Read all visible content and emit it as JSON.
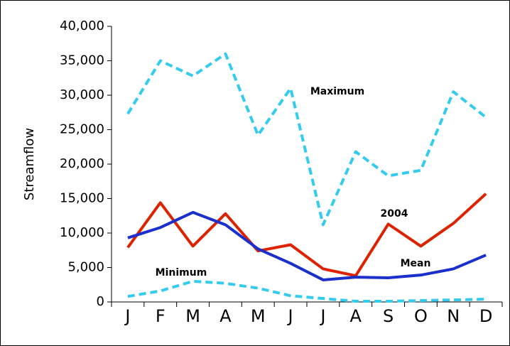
{
  "chart_data": {
    "type": "line",
    "y_label": "Streamflow",
    "categories": [
      "J",
      "F",
      "M",
      "A",
      "M",
      "J",
      "J",
      "A",
      "S",
      "O",
      "N",
      "D"
    ],
    "series": [
      {
        "name": "Maximum",
        "color": "#33ccee",
        "dashed": true,
        "values": [
          27300,
          35000,
          32800,
          36000,
          24200,
          31000,
          11200,
          21800,
          18300,
          19100,
          30500,
          26800
        ]
      },
      {
        "name": "2004",
        "color": "#dd2200",
        "dashed": false,
        "values": [
          7900,
          14400,
          8100,
          12800,
          7400,
          8300,
          4800,
          3800,
          11300,
          8100,
          11400,
          15700
        ]
      },
      {
        "name": "Mean",
        "color": "#1a2fcc",
        "dashed": false,
        "values": [
          9300,
          10800,
          13000,
          11200,
          7700,
          5600,
          3200,
          3600,
          3500,
          3900,
          4800,
          6800
        ]
      },
      {
        "name": "Minimum",
        "color": "#33ccee",
        "dashed": true,
        "values": [
          800,
          1600,
          3000,
          2700,
          2000,
          900,
          500,
          100,
          100,
          200,
          300,
          400
        ]
      }
    ],
    "ylim": [
      0,
      40000
    ],
    "yticks": [
      {
        "value": 0,
        "label": "0"
      },
      {
        "value": 5000,
        "label": "5,000"
      },
      {
        "value": 10000,
        "label": "10,000"
      },
      {
        "value": 15000,
        "label": "15,000"
      },
      {
        "value": 20000,
        "label": "20,000"
      },
      {
        "value": 25000,
        "label": "25,000"
      },
      {
        "value": 30000,
        "label": "30,000"
      },
      {
        "value": 35000,
        "label": "35,000"
      },
      {
        "value": 40000,
        "label": "40,000"
      }
    ],
    "grid": false
  }
}
